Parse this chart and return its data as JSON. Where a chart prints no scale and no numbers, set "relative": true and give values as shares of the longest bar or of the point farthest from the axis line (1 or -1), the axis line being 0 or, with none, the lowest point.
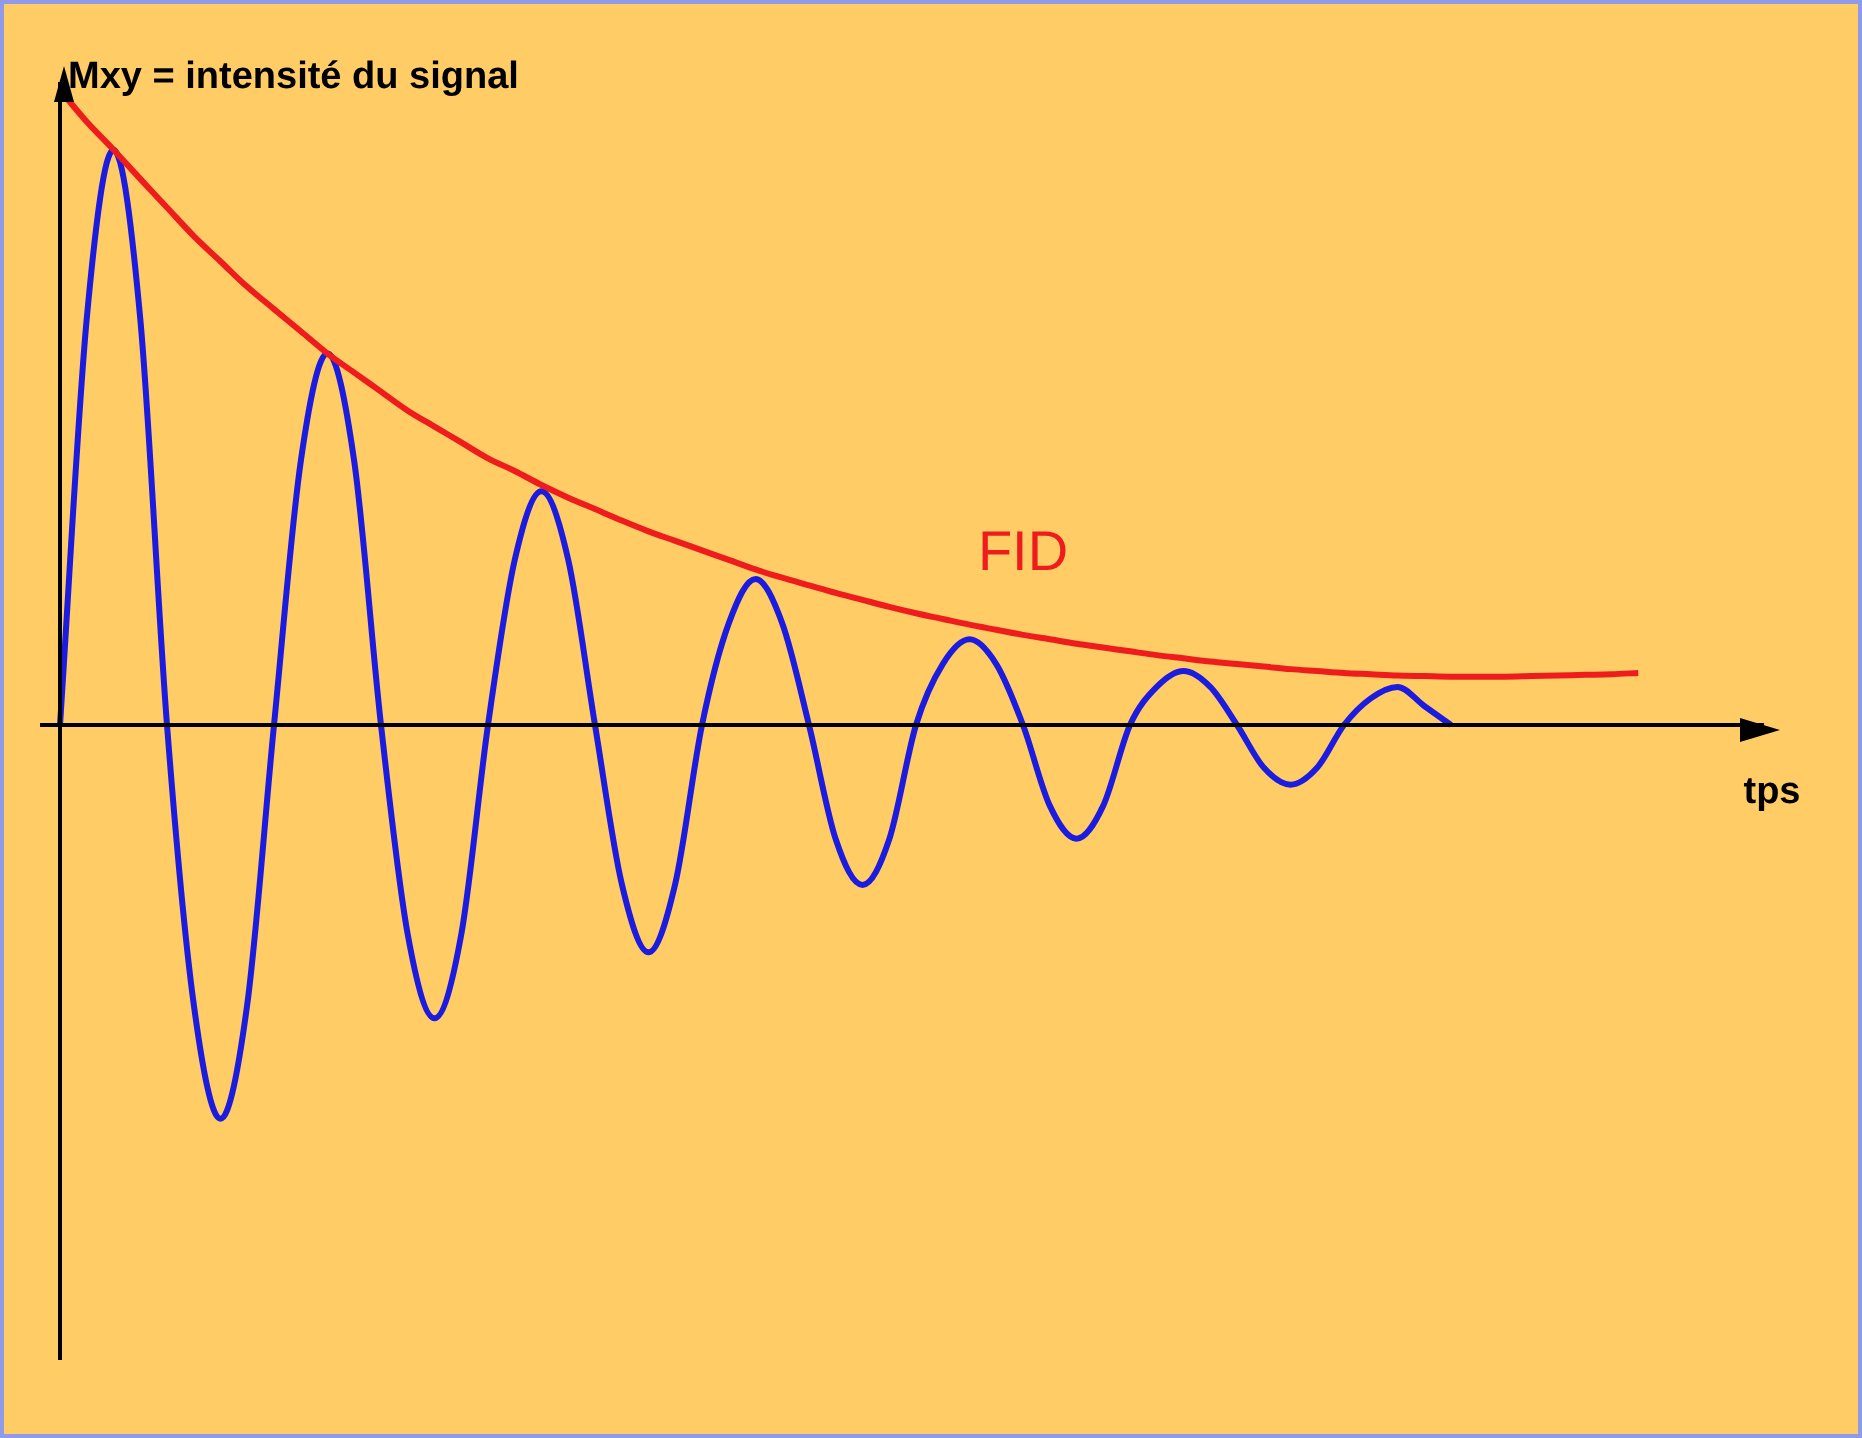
{
  "chart_data": {
    "type": "line",
    "relative": true,
    "xlabel": "tps",
    "ylabel": "Mxy = intensité du signal",
    "categories": [
      null,
      null,
      null,
      null,
      null,
      null,
      null,
      null,
      null,
      null,
      null,
      null,
      null,
      null,
      null,
      null,
      null,
      null,
      null,
      null,
      null,
      null,
      null,
      null,
      null,
      null,
      null,
      null,
      null,
      null,
      null,
      null,
      null,
      null,
      null,
      null,
      null,
      null,
      null,
      null,
      null,
      null,
      null,
      null,
      null,
      null,
      null,
      null,
      null,
      null,
      null,
      null,
      null,
      null,
      null,
      null,
      null,
      null,
      null,
      null,
      null,
      null,
      null,
      null,
      null
    ],
    "series": [
      {
        "name": "FID",
        "color": "#ee1c1c",
        "values": [
          1.0,
          0.95,
          0.906,
          0.86,
          0.815,
          0.77,
          0.73,
          0.69,
          0.655,
          0.62,
          0.585,
          0.555,
          0.525,
          0.495,
          0.47,
          0.445,
          0.42,
          0.4,
          0.378,
          0.358,
          0.34,
          0.322,
          0.305,
          0.29,
          0.275,
          0.26,
          0.245,
          0.232,
          0.22,
          0.208,
          0.197,
          0.186,
          0.176,
          0.167,
          0.158,
          0.15,
          0.142,
          0.135,
          0.128,
          0.122,
          0.116,
          0.11,
          0.105,
          0.1,
          0.096,
          0.092,
          0.088,
          0.085,
          0.082,
          0.08,
          0.078,
          0.077,
          0.076,
          0.076,
          0.076,
          0.077,
          0.078,
          0.079,
          0.08,
          0.082,
          null,
          null,
          null,
          null,
          null
        ]
      },
      {
        "color": "#1c1ce0",
        "values": [
          0,
          0.64,
          0.906,
          0.64,
          0,
          -0.44,
          -0.62,
          -0.44,
          0,
          0.415,
          0.585,
          0.415,
          0,
          -0.33,
          -0.462,
          -0.33,
          0,
          0.26,
          0.368,
          0.26,
          0,
          -0.25,
          -0.358,
          -0.25,
          0,
          0.16,
          0.23,
          0.16,
          0,
          -0.18,
          -0.252,
          -0.18,
          0,
          0.096,
          0.135,
          0.096,
          0,
          -0.127,
          -0.179,
          -0.127,
          0,
          0.06,
          0.085,
          0.06,
          0,
          -0.067,
          -0.094,
          -0.067,
          0,
          0.042,
          0.06,
          0.03,
          0,
          null,
          null,
          null,
          null,
          null,
          null,
          null,
          null,
          null,
          null,
          null,
          null
        ]
      }
    ]
  }
}
